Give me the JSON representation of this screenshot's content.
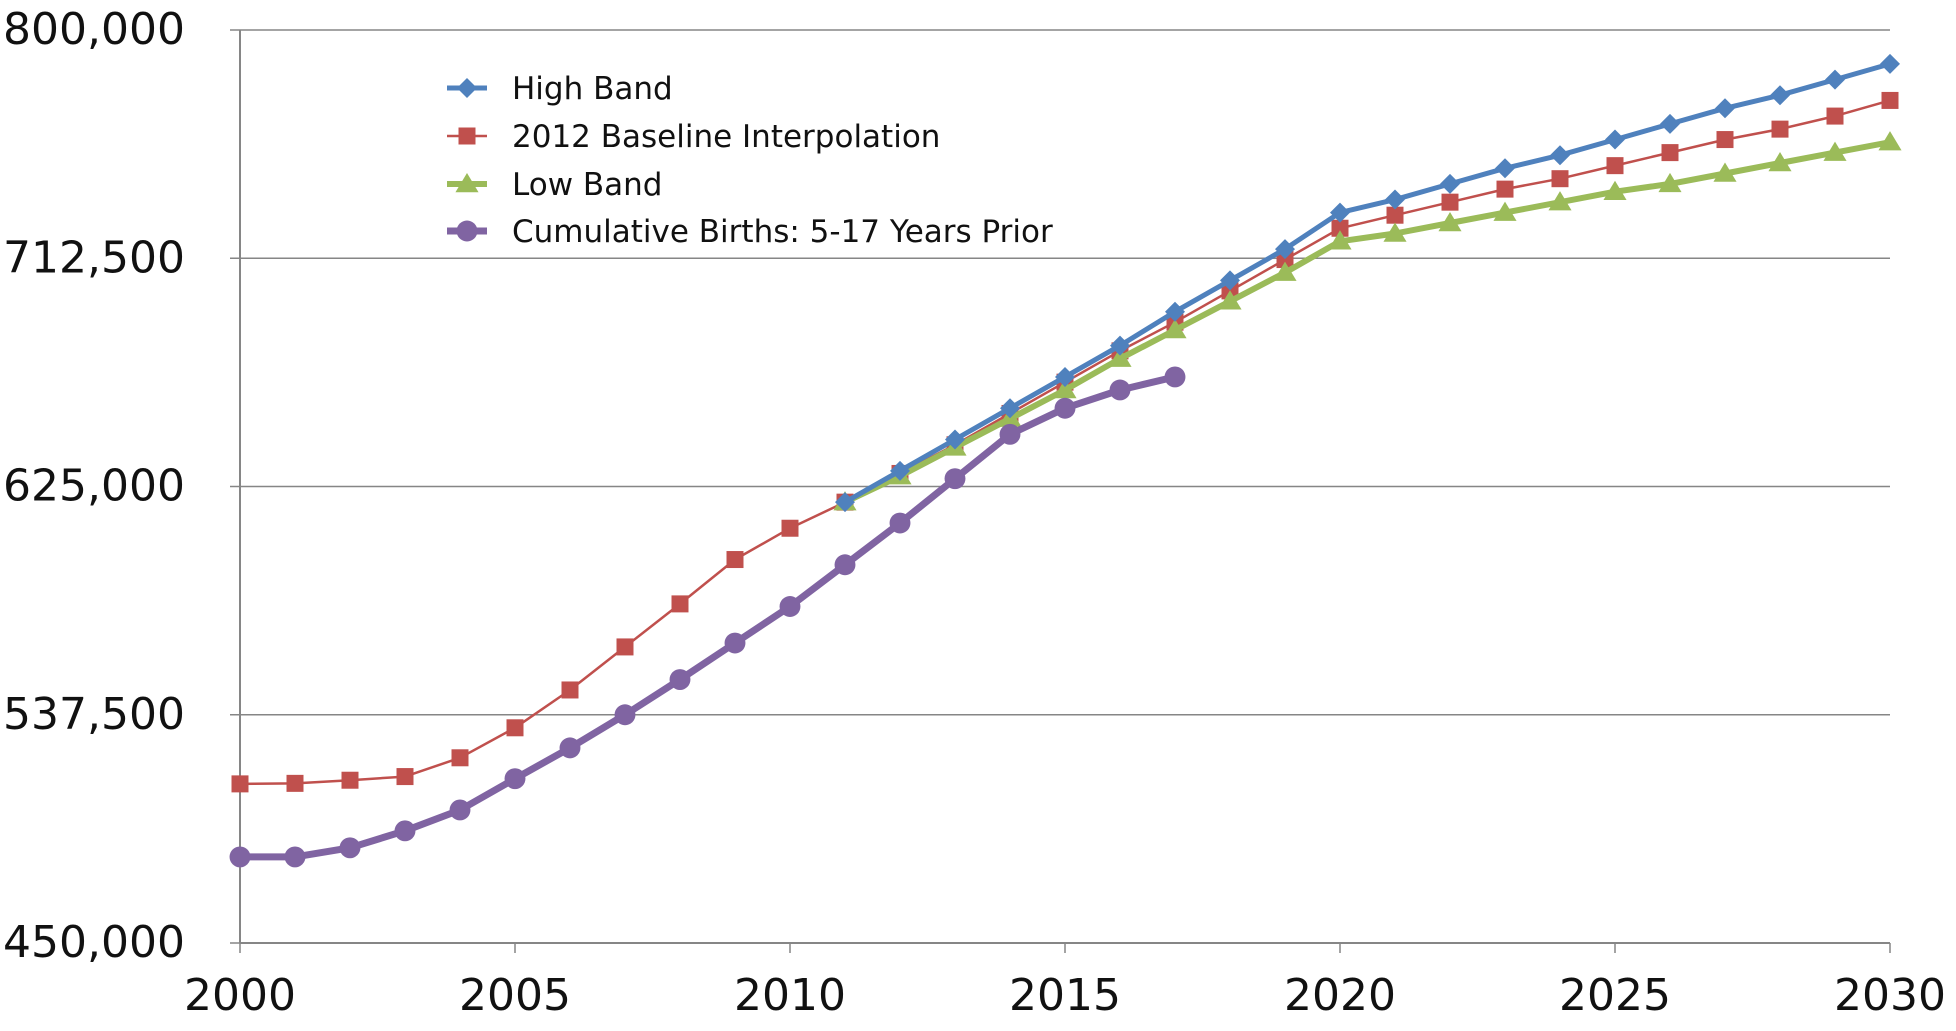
{
  "chart_data": {
    "type": "line",
    "title": "",
    "xlabel": "",
    "ylabel": "",
    "xlim": [
      2000,
      2030
    ],
    "ylim": [
      450000,
      800000
    ],
    "x_ticks": [
      "2000",
      "2005",
      "2010",
      "2015",
      "2020",
      "2025",
      "2030"
    ],
    "y_ticks": [
      "450,000",
      "537,500",
      "625,000",
      "712,500",
      "800,000"
    ],
    "grid": "horizontal",
    "legend_position": "top-left inside",
    "series": [
      {
        "name": "High Band",
        "color": "#4f81bd",
        "marker": "diamond",
        "x": [
          2011,
          2012,
          2013,
          2014,
          2015,
          2016,
          2017,
          2018,
          2019,
          2020,
          2021,
          2022,
          2023,
          2024,
          2025,
          2026,
          2027,
          2028,
          2029,
          2030
        ],
        "values": [
          619000,
          631000,
          643000,
          655000,
          667000,
          679000,
          692000,
          704000,
          716000,
          730000,
          735000,
          741000,
          747000,
          752000,
          758000,
          764000,
          770000,
          775000,
          781000,
          787000
        ]
      },
      {
        "name": "2012 Baseline Interpolation",
        "color": "#c0504d",
        "marker": "square",
        "x": [
          2000,
          2001,
          2002,
          2003,
          2004,
          2005,
          2006,
          2007,
          2008,
          2009,
          2010,
          2011,
          2012,
          2013,
          2014,
          2015,
          2016,
          2017,
          2018,
          2019,
          2020,
          2021,
          2022,
          2023,
          2024,
          2025,
          2026,
          2027,
          2028,
          2029,
          2030
        ],
        "values": [
          511000,
          511200,
          512400,
          513800,
          521000,
          532500,
          547000,
          563500,
          580000,
          597000,
          609000,
          619000,
          630000,
          641000,
          653000,
          665000,
          677000,
          688000,
          700000,
          712000,
          724000,
          729000,
          734000,
          739000,
          743000,
          748000,
          753000,
          758000,
          762000,
          767000,
          773000
        ]
      },
      {
        "name": "Low Band",
        "color": "#9bbb59",
        "marker": "triangle",
        "x": [
          2011,
          2012,
          2013,
          2014,
          2015,
          2016,
          2017,
          2018,
          2019,
          2020,
          2021,
          2022,
          2023,
          2024,
          2025,
          2026,
          2027,
          2028,
          2029,
          2030
        ],
        "values": [
          619000,
          629000,
          640000,
          651000,
          662000,
          674000,
          685000,
          696000,
          707000,
          719000,
          722000,
          726000,
          730000,
          734000,
          738000,
          741000,
          745000,
          749000,
          753000,
          757000
        ]
      },
      {
        "name": "Cumulative Births: 5-17 Years Prior",
        "color": "#8064a2",
        "marker": "circle",
        "x": [
          2000,
          2001,
          2002,
          2003,
          2004,
          2005,
          2006,
          2007,
          2008,
          2009,
          2010,
          2011,
          2012,
          2013,
          2014,
          2015,
          2016,
          2017
        ],
        "values": [
          483000,
          483000,
          486500,
          493000,
          501000,
          513000,
          524800,
          537500,
          551000,
          565000,
          579000,
          595000,
          611000,
          628000,
          645000,
          655000,
          662000,
          667000
        ]
      }
    ]
  }
}
